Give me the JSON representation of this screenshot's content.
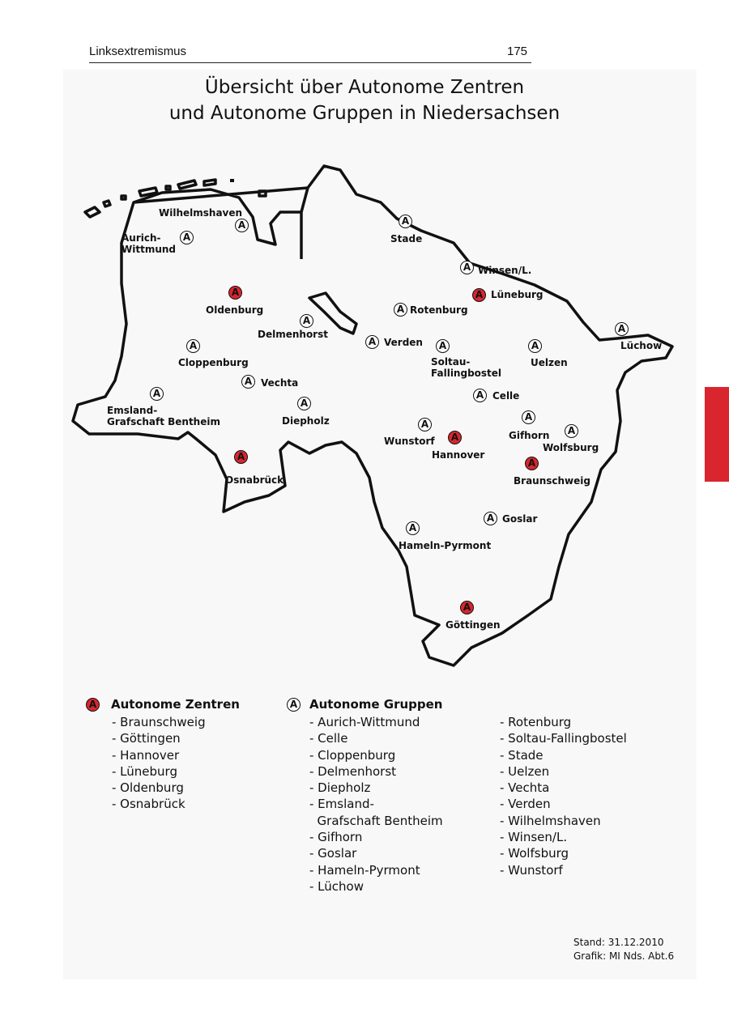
{
  "header": {
    "section": "Linksextremismus",
    "page_number": "175"
  },
  "figure": {
    "title_line1": "Übersicht über Autonome Zentren",
    "title_line2": "und Autonome Gruppen in Niedersachsen",
    "colors": {
      "zentrum": "#d9262e",
      "gruppe": "#ffffff",
      "outline": "#111111",
      "tab": "#d9262e"
    },
    "marker_glyph": "A",
    "markers": [
      {
        "name": "Wilhelmshaven",
        "type": "gruppe"
      },
      {
        "name": "Aurich-",
        "name2": "Wittmund",
        "type": "gruppe"
      },
      {
        "name": "Stade",
        "type": "gruppe"
      },
      {
        "name": "Winsen/L.",
        "type": "gruppe"
      },
      {
        "name": "Lüneburg",
        "type": "zentrum"
      },
      {
        "name": "Oldenburg",
        "type": "zentrum"
      },
      {
        "name": "Rotenburg",
        "type": "gruppe"
      },
      {
        "name": "Delmenhorst",
        "type": "gruppe"
      },
      {
        "name": "Verden",
        "type": "gruppe"
      },
      {
        "name": "Soltau-",
        "name2": "Fallingbostel",
        "type": "gruppe"
      },
      {
        "name": "Uelzen",
        "type": "gruppe"
      },
      {
        "name": "Lüchow",
        "type": "gruppe"
      },
      {
        "name": "Cloppenburg",
        "type": "gruppe"
      },
      {
        "name": "Vechta",
        "type": "gruppe"
      },
      {
        "name": "Celle",
        "type": "gruppe"
      },
      {
        "name": "Emsland-",
        "name2": "Grafschaft Bentheim",
        "type": "gruppe"
      },
      {
        "name": "Diepholz",
        "type": "gruppe"
      },
      {
        "name": "Gifhorn",
        "type": "gruppe"
      },
      {
        "name": "Wolfsburg",
        "type": "gruppe"
      },
      {
        "name": "Wunstorf",
        "type": "gruppe"
      },
      {
        "name": "Hannover",
        "type": "zentrum"
      },
      {
        "name": "Braunschweig",
        "type": "zentrum"
      },
      {
        "name": "Osnabrück",
        "type": "zentrum"
      },
      {
        "name": "Goslar",
        "type": "gruppe"
      },
      {
        "name": "Hameln-Pyrmont",
        "type": "gruppe"
      },
      {
        "name": "Göttingen",
        "type": "zentrum"
      }
    ],
    "legend": {
      "zentren": {
        "title": "Autonome Zentren",
        "items": [
          "- Braunschweig",
          "- Göttingen",
          "- Hannover",
          "- Lüneburg",
          "- Oldenburg",
          "- Osnabrück"
        ]
      },
      "gruppen": {
        "title": "Autonome Gruppen",
        "col1": [
          "- Aurich-Wittmund",
          "- Celle",
          "- Cloppenburg",
          "- Delmenhorst",
          "- Diepholz",
          "- Emsland-",
          "  Grafschaft Bentheim",
          "- Gifhorn",
          "- Goslar",
          "- Hameln-Pyrmont",
          "- Lüchow"
        ],
        "col2": [
          "- Rotenburg",
          "- Soltau-Fallingbostel",
          "- Stade",
          "- Uelzen",
          "- Vechta",
          "- Verden",
          "- Wilhelmshaven",
          "- Winsen/L.",
          "- Wolfsburg",
          "- Wunstorf"
        ]
      }
    },
    "stand": "Stand: 31.12.2010",
    "grafik": "Grafik: MI Nds. Abt.6"
  }
}
